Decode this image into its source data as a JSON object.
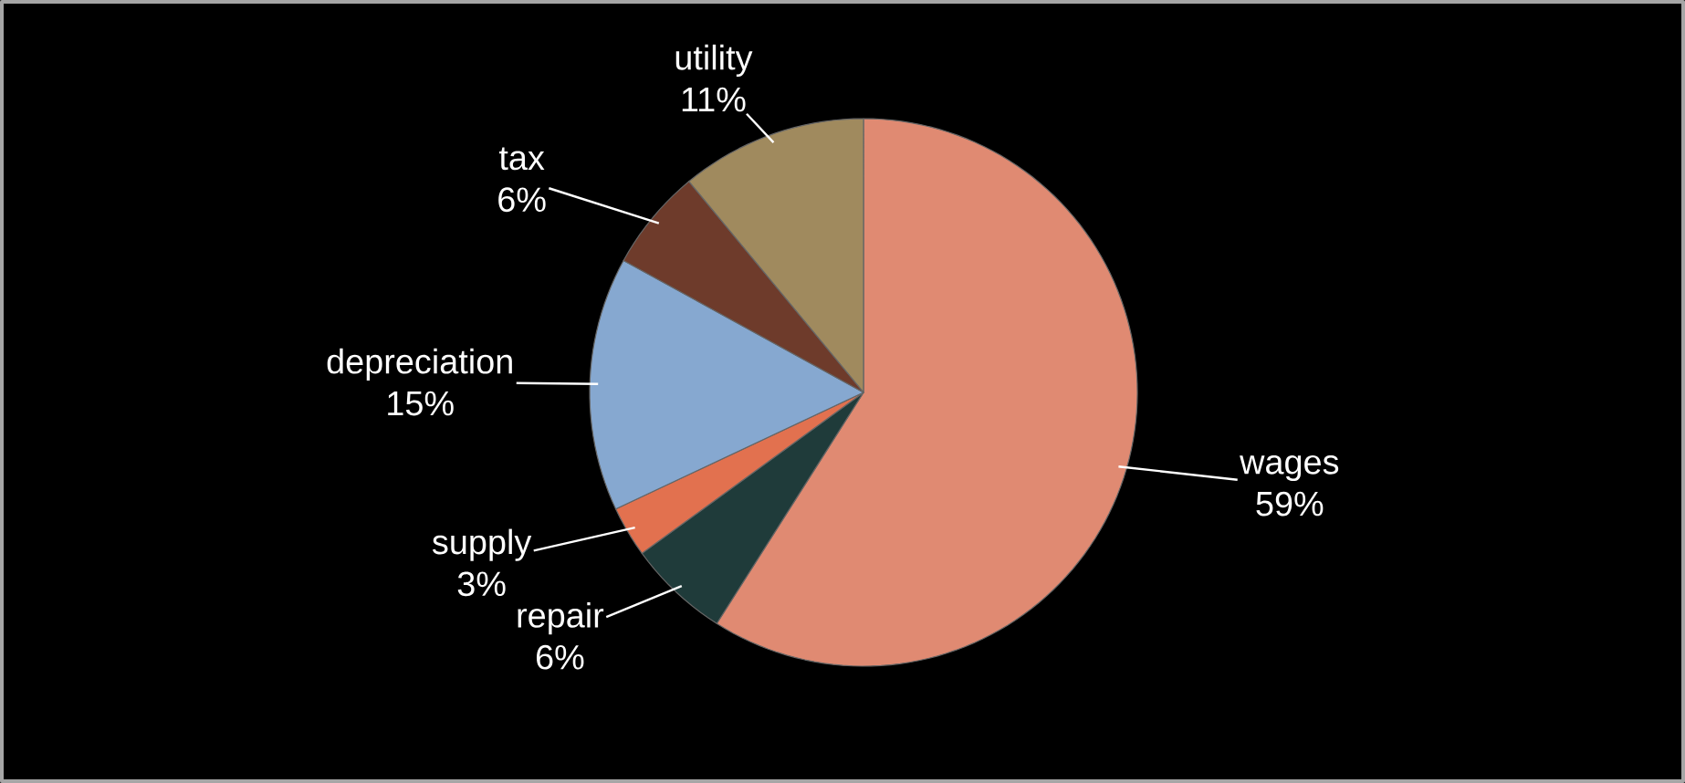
{
  "chart_data": {
    "type": "pie",
    "categories": [
      "wages",
      "repair",
      "supply",
      "depreciation",
      "tax",
      "utility"
    ],
    "values": [
      59,
      6,
      3,
      15,
      6,
      11
    ],
    "value_labels": [
      "59%",
      "6%",
      "3%",
      "15%",
      "6%",
      "11%"
    ],
    "colors": [
      "#e08a72",
      "#1f3b3a",
      "#e2714f",
      "#86a8d0",
      "#6e3b2b",
      "#a08a5e"
    ]
  }
}
